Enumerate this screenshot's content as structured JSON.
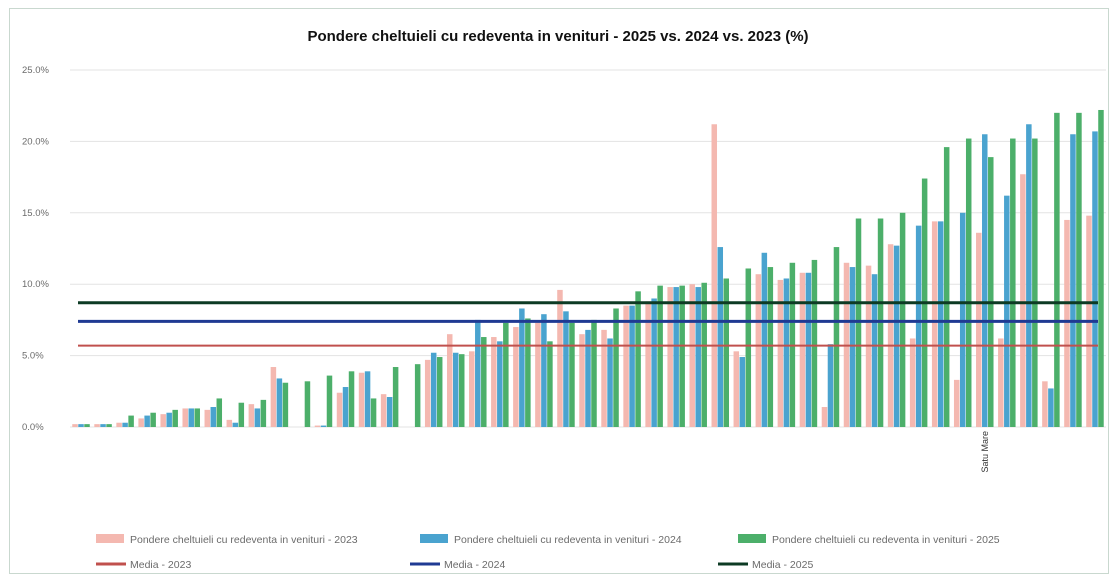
{
  "chart_data": {
    "type": "bar",
    "title": "Pondere cheltuieli cu redeventa in venituri - 2025 vs. 2024 vs. 2023 (%)",
    "xlabel": "",
    "ylabel": "",
    "ylim": [
      0,
      25
    ],
    "y_ticks": [
      "0.0%",
      "5.0%",
      "10.0%",
      "15.0%",
      "20.0%",
      "25.0%"
    ],
    "grid": true,
    "legend_position": "bottom",
    "categories": [
      "",
      "",
      "",
      "",
      "",
      "",
      "",
      "",
      "",
      "",
      "",
      "",
      "",
      "",
      "",
      "",
      "",
      "",
      "",
      "",
      "",
      "",
      "",
      "",
      "",
      "",
      "",
      "",
      "",
      "",
      "",
      "",
      "",
      "",
      "",
      "",
      "",
      "",
      "",
      "",
      "",
      "Satu Mare",
      "",
      "",
      "",
      "",
      ""
    ],
    "series": [
      {
        "name": "Pondere cheltuieli cu redeventa in venituri - 2023",
        "color": "#f4b8b0",
        "values": [
          0.2,
          0.2,
          0.3,
          0.6,
          0.9,
          1.3,
          1.2,
          0.5,
          1.6,
          4.2,
          0,
          0.1,
          2.4,
          3.8,
          2.3,
          0,
          4.7,
          6.5,
          5.3,
          6.3,
          7.0,
          7.3,
          9.6,
          6.5,
          6.8,
          8.5,
          8.8,
          9.8,
          10.0,
          21.2,
          5.3,
          10.7,
          10.3,
          10.8,
          1.4,
          11.5,
          11.3,
          12.8,
          6.2,
          14.4,
          3.3,
          13.6,
          6.2,
          17.7,
          3.2,
          14.5,
          14.8
        ]
      },
      {
        "name": "Pondere cheltuieli cu redeventa in venituri - 2024",
        "color": "#4aa3cf",
        "values": [
          0.2,
          0.2,
          0.3,
          0.8,
          1.0,
          1.3,
          1.4,
          0.3,
          1.3,
          3.4,
          0,
          0.1,
          2.8,
          3.9,
          2.1,
          0,
          5.2,
          5.2,
          7.5,
          6.0,
          8.3,
          7.9,
          8.1,
          6.8,
          6.2,
          8.5,
          9.0,
          9.8,
          9.8,
          12.6,
          4.9,
          12.2,
          10.4,
          10.8,
          5.8,
          11.2,
          10.7,
          12.7,
          14.1,
          14.4,
          15.0,
          20.5,
          16.2,
          21.2,
          2.7,
          20.5,
          20.7
        ]
      },
      {
        "name": "Pondere cheltuieli cu redeventa in venituri - 2025",
        "color": "#4caf6a",
        "values": [
          0.2,
          0.2,
          0.8,
          1.0,
          1.2,
          1.3,
          2.0,
          1.7,
          1.9,
          3.1,
          3.2,
          3.6,
          3.9,
          2.0,
          4.2,
          4.4,
          4.9,
          5.1,
          6.3,
          7.3,
          7.6,
          6.0,
          7.3,
          7.5,
          8.3,
          9.5,
          9.9,
          9.9,
          10.1,
          10.4,
          11.1,
          11.2,
          11.5,
          11.7,
          12.6,
          14.6,
          14.6,
          15.0,
          17.4,
          19.6,
          20.2,
          18.9,
          20.2,
          20.2,
          22.0,
          22.0,
          22.2
        ]
      }
    ],
    "reference_lines": [
      {
        "name": "Media - 2023",
        "value": 5.7,
        "color": "#c0504d"
      },
      {
        "name": "Media - 2024",
        "value": 7.4,
        "color": "#1f3a93"
      },
      {
        "name": "Media - 2025",
        "value": 8.7,
        "color": "#0d3b24"
      }
    ]
  }
}
